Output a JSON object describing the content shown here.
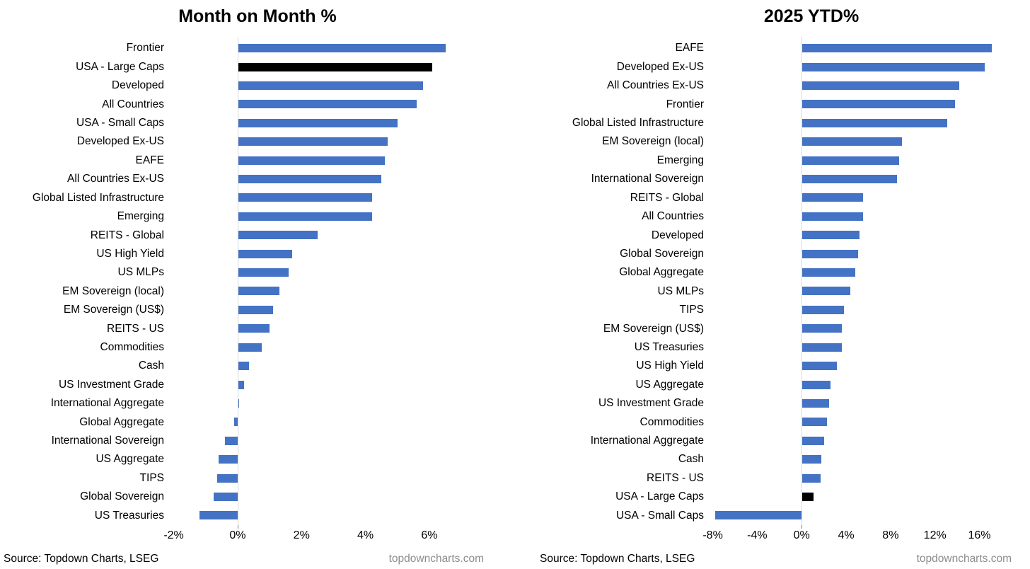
{
  "colors": {
    "bar_blue": "#4472C4",
    "bar_black": "#000000",
    "zero_line": "#D9D9D9",
    "tick_mark": "#7F7F7F",
    "site_text": "#8C8C8C"
  },
  "footers": [
    {
      "source": "Source: Topdown Charts, LSEG",
      "site": "topdowncharts.com"
    },
    {
      "source": "Source: Topdown Charts, LSEG",
      "site": "topdowncharts.com"
    }
  ],
  "chart_data": [
    {
      "type": "bar",
      "orientation": "horizontal",
      "title": "Month on Month %",
      "xlabel": "",
      "ylabel": "",
      "xlim": [
        -2.3,
        8.06
      ],
      "ticks": [
        -2,
        0,
        2,
        4,
        6
      ],
      "tick_labels": [
        "-2%",
        "0%",
        "2%",
        "4%",
        "6%"
      ],
      "grid": false,
      "legend": false,
      "highlight_category": "USA - Large Caps",
      "categories": [
        "Frontier",
        "USA - Large Caps",
        "Developed",
        "All Countries",
        "USA - Small Caps",
        "Developed Ex-US",
        "EAFE",
        "All Countries Ex-US",
        "Global Listed Infrastructure",
        "Emerging",
        "REITS - Global",
        "US High Yield",
        "US MLPs",
        "EM Sovereign (local)",
        "EM Sovereign (US$)",
        "REITS - US",
        "Commodities",
        "Cash",
        "US Investment Grade",
        "International Aggregate",
        "Global Aggregate",
        "International Sovereign",
        "US Aggregate",
        "TIPS",
        "Global Sovereign",
        "US Treasuries"
      ],
      "values": [
        6.5,
        6.1,
        5.8,
        5.6,
        5.0,
        4.7,
        4.6,
        4.5,
        4.2,
        4.2,
        2.5,
        1.7,
        1.6,
        1.3,
        1.1,
        1.0,
        0.75,
        0.35,
        0.2,
        0.05,
        -0.1,
        -0.4,
        -0.6,
        -0.65,
        -0.75,
        -1.2
      ]
    },
    {
      "type": "bar",
      "orientation": "horizontal",
      "title": "2025 YTD%",
      "xlabel": "",
      "ylabel": "",
      "xlim": [
        -8.8,
        19.85
      ],
      "ticks": [
        -8,
        -4,
        0,
        4,
        8,
        12,
        16
      ],
      "tick_labels": [
        "-8%",
        "-4%",
        "0%",
        "4%",
        "8%",
        "12%",
        "16%"
      ],
      "grid": false,
      "legend": false,
      "highlight_category": "USA - Large Caps",
      "categories": [
        "EAFE",
        "Developed Ex-US",
        "All Countries Ex-US",
        "Frontier",
        "Global Listed Infrastructure",
        "EM Sovereign (local)",
        "Emerging",
        "International Sovereign",
        "REITS - Global",
        "All Countries",
        "Developed",
        "Global Sovereign",
        "Global Aggregate",
        "US MLPs",
        "TIPS",
        "EM Sovereign (US$)",
        "US Treasuries",
        "US High Yield",
        "US Aggregate",
        "US Investment Grade",
        "Commodities",
        "International Aggregate",
        "Cash",
        "REITS - US",
        "USA - Large Caps",
        "USA - Small Caps"
      ],
      "values": [
        17.1,
        16.5,
        14.2,
        13.8,
        13.1,
        9.0,
        8.8,
        8.6,
        5.5,
        5.5,
        5.2,
        5.1,
        4.8,
        4.4,
        3.8,
        3.6,
        3.6,
        3.2,
        2.6,
        2.5,
        2.3,
        2.0,
        1.8,
        1.7,
        1.1,
        -7.8
      ]
    }
  ]
}
